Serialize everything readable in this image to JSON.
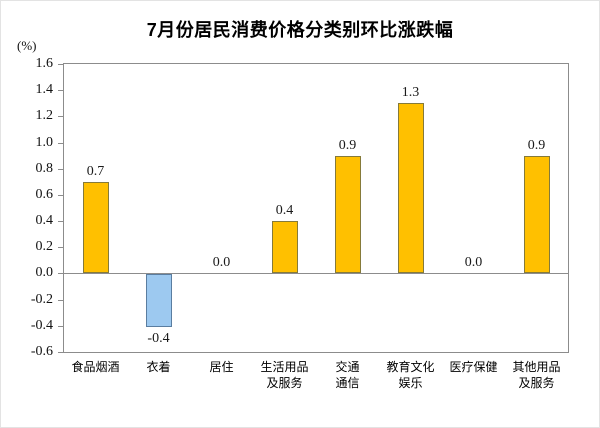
{
  "chart_data": {
    "type": "bar",
    "title": "7月份居民消费价格分类别环比涨跌幅",
    "unit_label": "(%)",
    "categories": [
      "食品烟酒",
      "衣着",
      "居住",
      "生活用品及服务",
      "交通通信",
      "教育文化娱乐",
      "医疗保健",
      "其他用品及服务"
    ],
    "category_lines": [
      [
        "食品烟酒"
      ],
      [
        "衣着"
      ],
      [
        "居住"
      ],
      [
        "生活用品",
        "及服务"
      ],
      [
        "交通",
        "通信"
      ],
      [
        "教育文化",
        "娱乐"
      ],
      [
        "医疗保健"
      ],
      [
        "其他用品",
        "及服务"
      ]
    ],
    "values": [
      0.7,
      -0.4,
      0.0,
      0.4,
      0.9,
      1.3,
      0.0,
      0.9
    ],
    "value_labels": [
      "0.7",
      "-0.4",
      "0.0",
      "0.4",
      "0.9",
      "1.3",
      "0.0",
      "0.9"
    ],
    "xlabel": "",
    "ylabel": "(%)",
    "ylim": [
      -0.6,
      1.6
    ],
    "y_tick_labels": [
      "1.6",
      "1.4",
      "1.2",
      "1.0",
      "0.8",
      "0.6",
      "0.4",
      "0.2",
      "0.0",
      "-0.2",
      "-0.4",
      "-0.6"
    ],
    "grid": false,
    "legend": "none",
    "colors": {
      "positive_fill": "#FFC000",
      "positive_border": "#857a3a",
      "negative_fill": "#9DC9F0",
      "negative_border": "#5a7da0",
      "axis_line": "#8c8c8c",
      "text": "#1a1a1a"
    }
  }
}
